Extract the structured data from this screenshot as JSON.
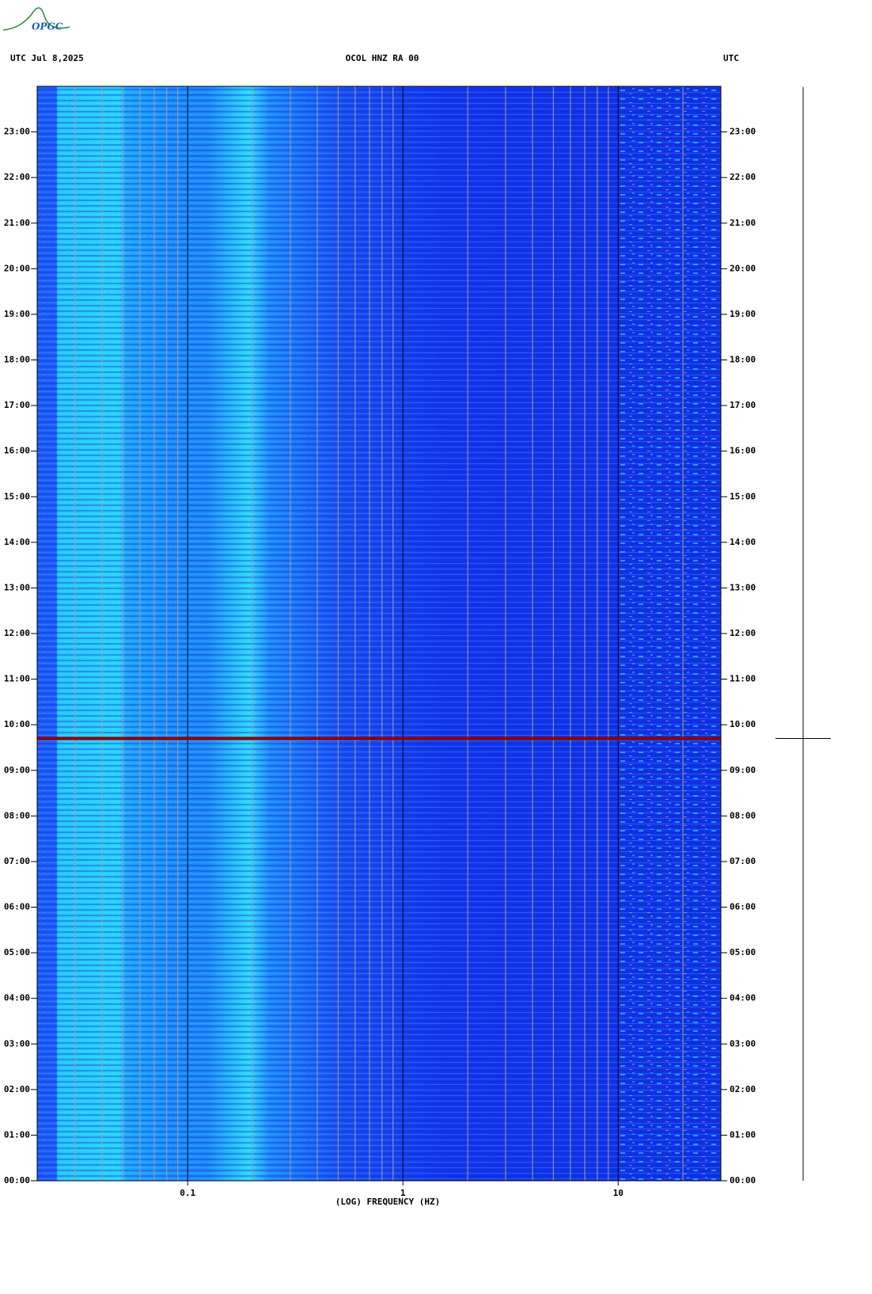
{
  "logo": "OPGC",
  "chart_data": {
    "type": "spectrogram",
    "title": "OCOL HNZ RA 00",
    "left_header": "UTC  Jul 8,2025",
    "right_header": "UTC",
    "x_label": "(LOG) FREQUENCY (HZ)",
    "x_log": true,
    "xlim": [
      0.02,
      30
    ],
    "xticks": [
      0.1,
      1,
      10
    ],
    "xgrid": [
      0.03,
      0.04,
      0.05,
      0.06,
      0.07,
      0.08,
      0.09,
      0.2,
      0.3,
      0.4,
      0.5,
      0.6,
      0.7,
      0.8,
      0.9,
      2,
      3,
      4,
      5,
      6,
      7,
      8,
      9,
      20
    ],
    "ylim": [
      0,
      24
    ],
    "yticks": [
      {
        "value": 0,
        "label": "00:00"
      },
      {
        "value": 1,
        "label": "01:00"
      },
      {
        "value": 2,
        "label": "02:00"
      },
      {
        "value": 3,
        "label": "03:00"
      },
      {
        "value": 4,
        "label": "04:00"
      },
      {
        "value": 5,
        "label": "05:00"
      },
      {
        "value": 6,
        "label": "06:00"
      },
      {
        "value": 7,
        "label": "07:00"
      },
      {
        "value": 8,
        "label": "08:00"
      },
      {
        "value": 9,
        "label": "09:00"
      },
      {
        "value": 10,
        "label": "10:00"
      },
      {
        "value": 11,
        "label": "11:00"
      },
      {
        "value": 12,
        "label": "12:00"
      },
      {
        "value": 13,
        "label": "13:00"
      },
      {
        "value": 14,
        "label": "14:00"
      },
      {
        "value": 15,
        "label": "15:00"
      },
      {
        "value": 16,
        "label": "16:00"
      },
      {
        "value": 17,
        "label": "17:00"
      },
      {
        "value": 18,
        "label": "18:00"
      },
      {
        "value": 19,
        "label": "19:00"
      },
      {
        "value": 20,
        "label": "20:00"
      },
      {
        "value": 21,
        "label": "21:00"
      },
      {
        "value": 22,
        "label": "22:00"
      },
      {
        "value": 23,
        "label": "23:00"
      }
    ],
    "event_line": {
      "value": 9.7,
      "color": "#8b0000"
    }
  }
}
